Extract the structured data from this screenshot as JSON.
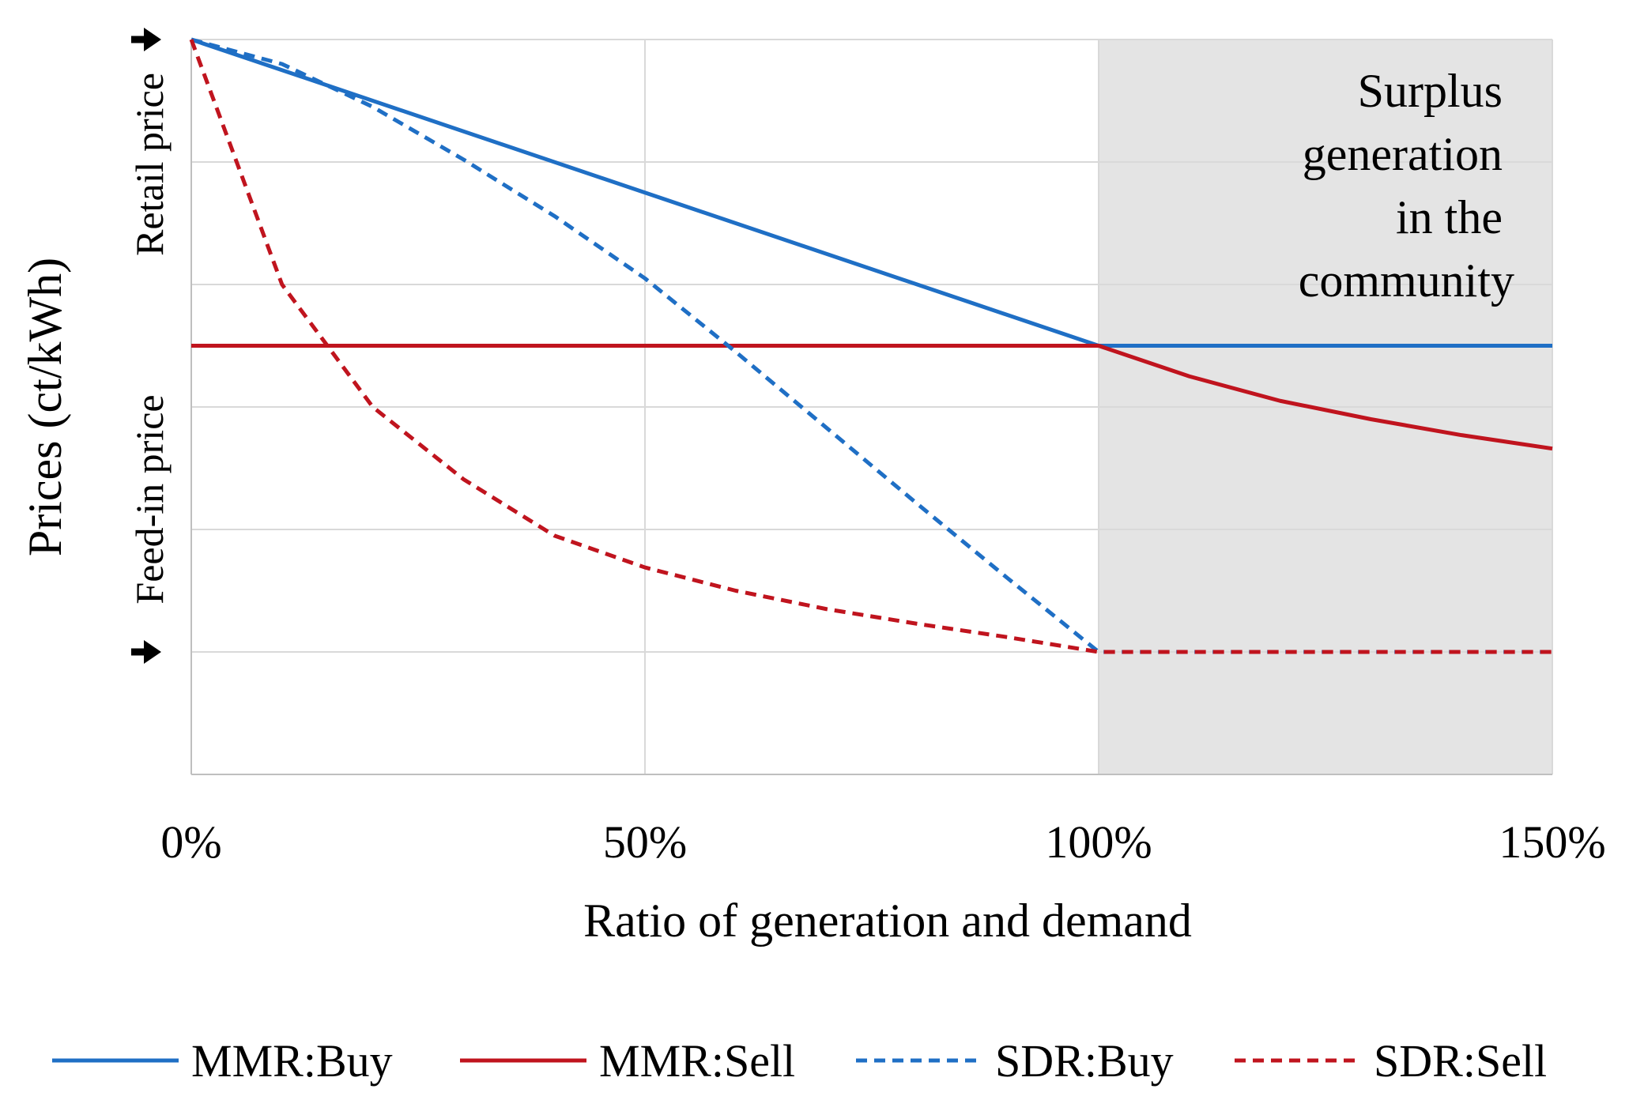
{
  "chart_data": {
    "type": "line",
    "title": "",
    "xlabel": "Ratio of generation and demand",
    "ylabel": "Prices (ct/kWh)",
    "xlim": [
      0,
      150
    ],
    "ylim": [
      0,
      60
    ],
    "x_ticks": [
      0,
      50,
      100,
      150
    ],
    "x_tick_labels": [
      "0%",
      "50%",
      "100%",
      "150%"
    ],
    "y_gridlines": [
      10,
      20,
      30,
      40,
      50,
      60
    ],
    "grid": true,
    "legend_position": "bottom",
    "y_annotations": {
      "retail_price": {
        "label": "Retail price",
        "value": 60
      },
      "feed_in_price": {
        "label": "Feed-in price",
        "value": 10
      }
    },
    "shaded_region": {
      "x_range": [
        100,
        150
      ],
      "label_lines": [
        "Surplus",
        "generation",
        "in the",
        "community"
      ],
      "color": "#e4e4e4"
    },
    "series": [
      {
        "name": "MMR:Buy",
        "color": "#1f6fc5",
        "dash": "solid",
        "x": [
          0,
          100,
          150
        ],
        "values": [
          60,
          35,
          35
        ]
      },
      {
        "name": "MMR:Sell",
        "color": "#c0141e",
        "dash": "solid",
        "x": [
          0,
          100,
          110,
          120,
          130,
          140,
          150
        ],
        "values": [
          35,
          35,
          32.5,
          30.5,
          29,
          27.7,
          26.6
        ]
      },
      {
        "name": "SDR:Buy",
        "color": "#1f6fc5",
        "dash": "dashed",
        "x": [
          0,
          10,
          20,
          30,
          40,
          50,
          60,
          70,
          80,
          90,
          100,
          150
        ],
        "values": [
          60,
          58,
          54.5,
          50.2,
          45.6,
          40.5,
          34.5,
          28.3,
          22.1,
          16,
          10,
          10
        ]
      },
      {
        "name": "SDR:Sell",
        "color": "#c0141e",
        "dash": "dashed",
        "x": [
          0,
          10,
          20,
          30,
          40,
          50,
          60,
          70,
          80,
          90,
          100,
          150
        ],
        "values": [
          60,
          40,
          30,
          24.1,
          19.5,
          16.9,
          15,
          13.5,
          12.3,
          11.2,
          10,
          10
        ]
      }
    ]
  }
}
